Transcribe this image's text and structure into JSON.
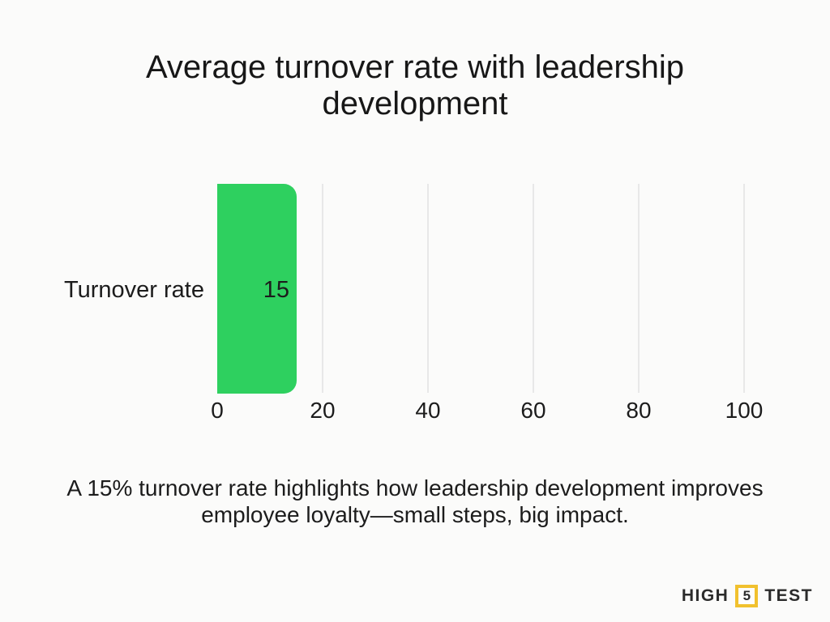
{
  "header": {
    "title": "Average turnover rate with leadership development"
  },
  "chart_data": {
    "type": "bar",
    "orientation": "horizontal",
    "title": "Average turnover rate with leadership development",
    "categories": [
      "Turnover rate"
    ],
    "values": [
      15
    ],
    "xlabel": "",
    "ylabel": "",
    "xlim": [
      0,
      100
    ],
    "xticks": [
      0,
      20,
      40,
      60,
      80,
      100
    ],
    "grid": "vertical-gridlines-on",
    "legend": "none",
    "bar_color": "#2ED05F",
    "gridline_color": "#E8E8E8",
    "value_label_position": "inside-end"
  },
  "footer": {
    "caption": "A 15% turnover rate highlights how leadership development improves employee loyalty—small steps, big impact."
  },
  "logo": {
    "left": "HIGH",
    "number": "5",
    "right": "TEST",
    "accent_color": "#F1C12E"
  },
  "colors": {
    "background": "#FBFBFA",
    "text": "#1C1C1C"
  }
}
